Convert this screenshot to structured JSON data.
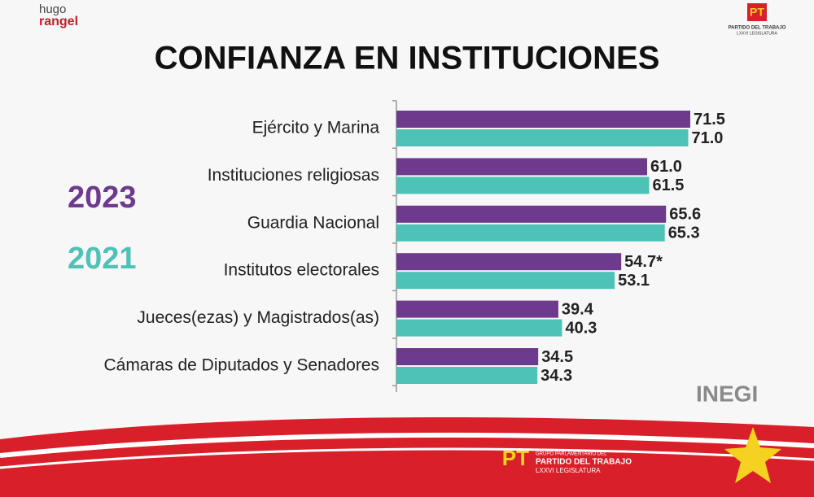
{
  "chart_data": {
    "type": "barh",
    "title": "CONFIANZA EN INSTITUCIONES",
    "categories": [
      "Ejército y Marina",
      "Instituciones religiosas",
      "Guardia Nacional",
      "Institutos electorales",
      "Jueces(ezas) y Magistrados(as)",
      "Cámaras de Diputados y Senadores"
    ],
    "series": [
      {
        "name": "2023",
        "color": "#6d3a8e",
        "values": [
          71.5,
          61.0,
          65.6,
          54.7,
          39.4,
          34.5
        ],
        "value_labels": [
          "71.5",
          "61.0",
          "65.6",
          "54.7*",
          "39.4",
          "34.5"
        ]
      },
      {
        "name": "2021",
        "color": "#4ec2b6",
        "values": [
          71.0,
          61.5,
          65.3,
          53.1,
          40.3,
          34.3
        ],
        "value_labels": [
          "71.0",
          "61.5",
          "65.3",
          "53.1",
          "40.3",
          "34.3"
        ]
      }
    ]
  },
  "branding": {
    "hugo": "hugo",
    "rangel": "rangel",
    "pt": "PT",
    "pt_group": "GRUPO PARLAMENTARIO DEL",
    "pt_party": "PARTIDO DEL TRABAJO",
    "pt_legislature": "LXXVI LEGISLATURA",
    "source": "INEGI"
  }
}
